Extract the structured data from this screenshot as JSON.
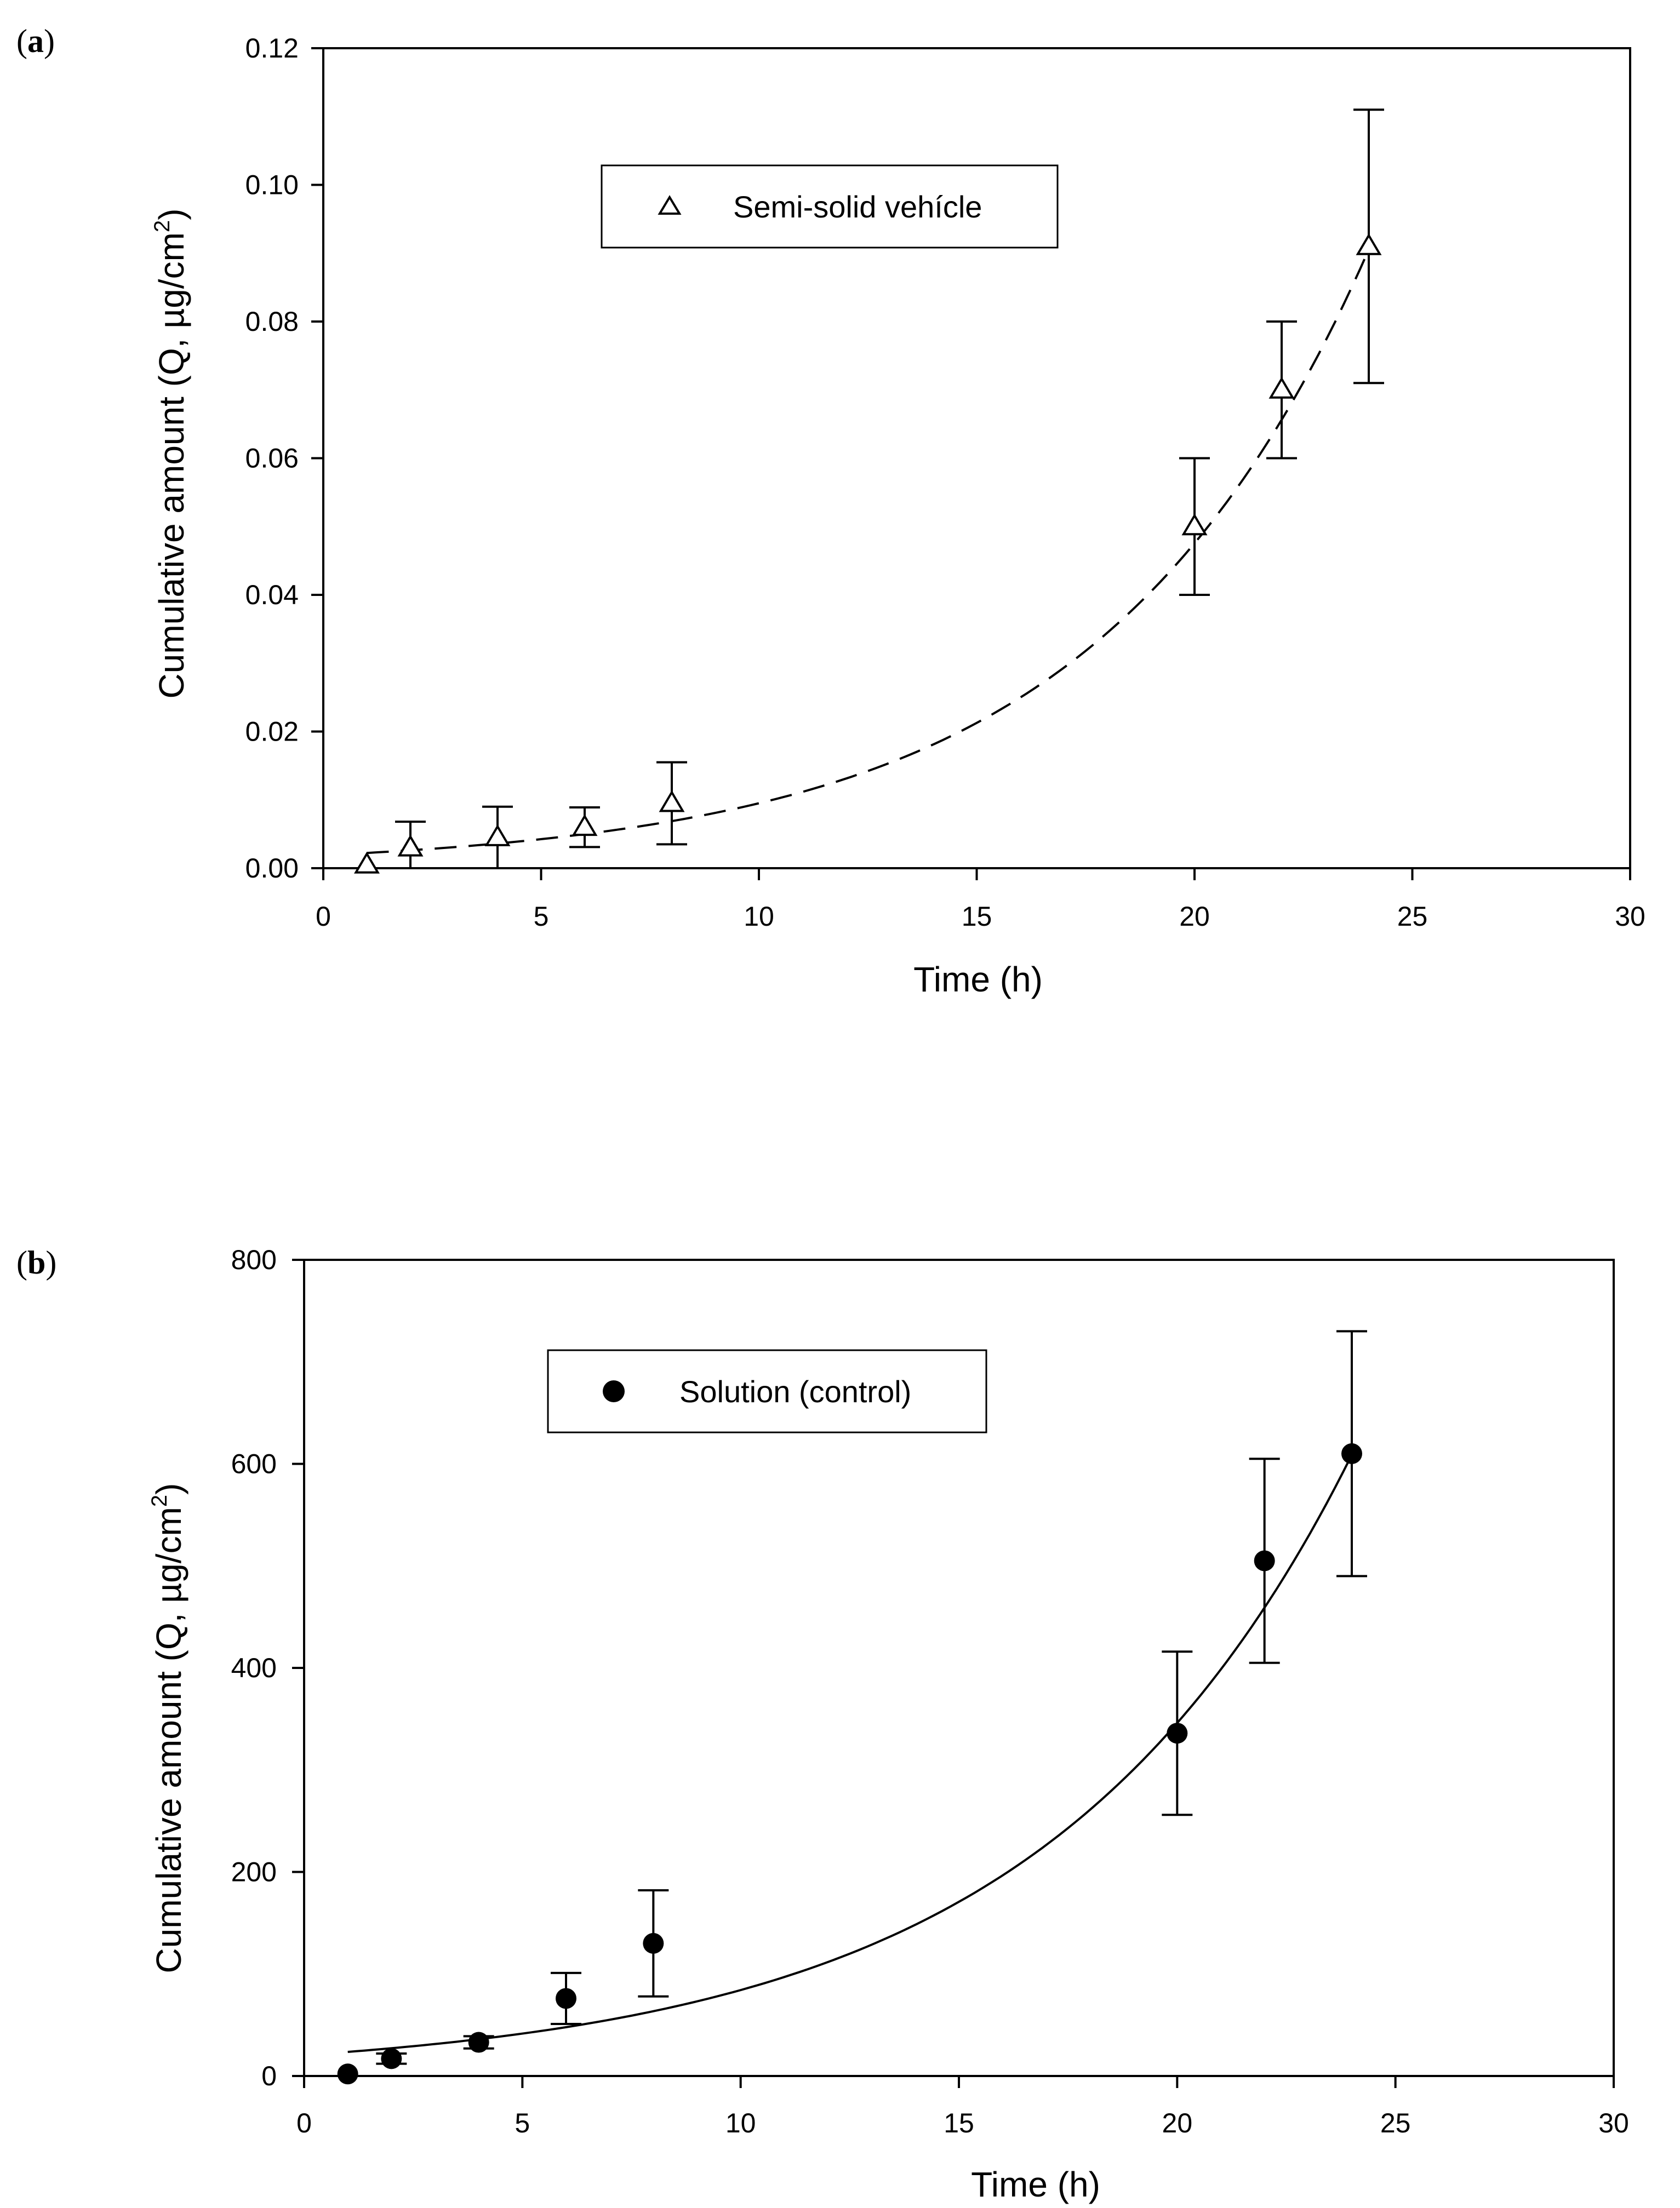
{
  "figure": {
    "panels": [
      {
        "label_open": "(",
        "label_letter": "a",
        "label_close": ")"
      },
      {
        "label_open": "(",
        "label_letter": "b",
        "label_close": ")"
      }
    ]
  },
  "chart_data": [
    {
      "type": "scatter",
      "panel": "a",
      "title": "",
      "xlabel": "Time (h)",
      "ylabel_main": "Cumulative amount (Q, µg/cm",
      "ylabel_sup": "2",
      "ylabel_end": ")",
      "xlim": [
        0,
        30
      ],
      "ylim": [
        0,
        0.12
      ],
      "xticks": [
        0,
        5,
        10,
        15,
        20,
        25,
        30
      ],
      "xtick_labels": [
        "0",
        "5",
        "10",
        "15",
        "20",
        "25",
        "30"
      ],
      "yticks": [
        0,
        0.02,
        0.04,
        0.06,
        0.08,
        0.1,
        0.12
      ],
      "ytick_labels": [
        "0.00",
        "0.02",
        "0.04",
        "0.06",
        "0.08",
        "0.10",
        "0.12"
      ],
      "grid": false,
      "legend_position": "top-center",
      "marker": "open-triangle",
      "fit_style": "dashed",
      "series": [
        {
          "name": "Semi-solid vehícle",
          "x": [
            1,
            2,
            4,
            6,
            8,
            20,
            22,
            24
          ],
          "y": [
            0.0005,
            0.003,
            0.0045,
            0.006,
            0.0095,
            0.05,
            0.07,
            0.091
          ],
          "error": [
            0.0,
            0.0038,
            0.0045,
            0.0029,
            0.006,
            0.01,
            0.01,
            0.02
          ]
        }
      ],
      "fit": {
        "x_start": 1,
        "x_end": 24,
        "a": 0.0019,
        "k": 0.161
      }
    },
    {
      "type": "scatter",
      "panel": "b",
      "title": "",
      "xlabel": "Time (h)",
      "ylabel_main": "Cumulative amount (Q, µg/cm",
      "ylabel_sup": "2",
      "ylabel_end": ")",
      "xlim": [
        0,
        30
      ],
      "ylim": [
        0,
        800
      ],
      "xticks": [
        0,
        5,
        10,
        15,
        20,
        25,
        30
      ],
      "xtick_labels": [
        "0",
        "5",
        "10",
        "15",
        "20",
        "25",
        "30"
      ],
      "yticks": [
        0,
        200,
        400,
        600,
        800
      ],
      "ytick_labels": [
        "0",
        "200",
        "400",
        "600",
        "800"
      ],
      "grid": false,
      "legend_position": "top-center",
      "marker": "filled-circle",
      "fit_style": "solid",
      "series": [
        {
          "name": "Solution (control)",
          "x": [
            1,
            2,
            4,
            6,
            8,
            20,
            22,
            24
          ],
          "y": [
            2,
            17,
            33,
            76,
            130,
            336,
            505,
            610
          ],
          "error": [
            0,
            5,
            6,
            25,
            52,
            80,
            100,
            120
          ]
        }
      ],
      "fit": {
        "x_start": 1,
        "x_end": 24,
        "a": 20.5,
        "k": 0.1413
      }
    }
  ]
}
